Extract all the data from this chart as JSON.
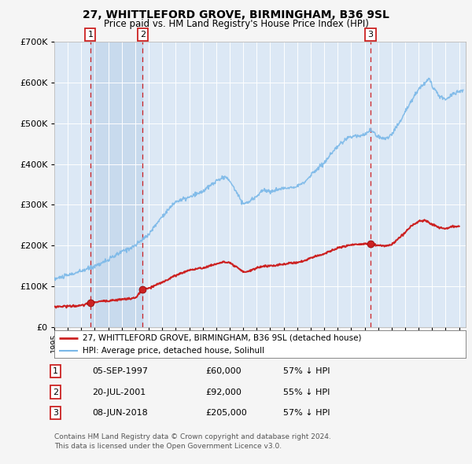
{
  "title": "27, WHITTLEFORD GROVE, BIRMINGHAM, B36 9SL",
  "subtitle": "Price paid vs. HM Land Registry's House Price Index (HPI)",
  "ylim": [
    0,
    700000
  ],
  "yticks": [
    0,
    100000,
    200000,
    300000,
    400000,
    500000,
    600000,
    700000
  ],
  "xlim_start": 1995.0,
  "xlim_end": 2025.5,
  "bg_color": "#dce8f5",
  "fig_bg_color": "#f5f5f5",
  "grid_color": "#ffffff",
  "hpi_color": "#7ab8e8",
  "price_color": "#cc2222",
  "marker_color": "#cc2222",
  "sale_dates": [
    1997.674,
    2001.549,
    2018.436
  ],
  "sale_prices": [
    60000,
    92000,
    205000
  ],
  "sale_labels": [
    "1",
    "2",
    "3"
  ],
  "vspan_ranges": [
    [
      1997.674,
      2001.549
    ]
  ],
  "legend_line1": "27, WHITTLEFORD GROVE, BIRMINGHAM, B36 9SL (detached house)",
  "legend_line2": "HPI: Average price, detached house, Solihull",
  "table_entries": [
    {
      "num": "1",
      "date": "05-SEP-1997",
      "price": "£60,000",
      "hpi": "57% ↓ HPI"
    },
    {
      "num": "2",
      "date": "20-JUL-2001",
      "price": "£92,000",
      "hpi": "55% ↓ HPI"
    },
    {
      "num": "3",
      "date": "08-JUN-2018",
      "price": "£205,000",
      "hpi": "57% ↓ HPI"
    }
  ],
  "footnote1": "Contains HM Land Registry data © Crown copyright and database right 2024.",
  "footnote2": "This data is licensed under the Open Government Licence v3.0."
}
